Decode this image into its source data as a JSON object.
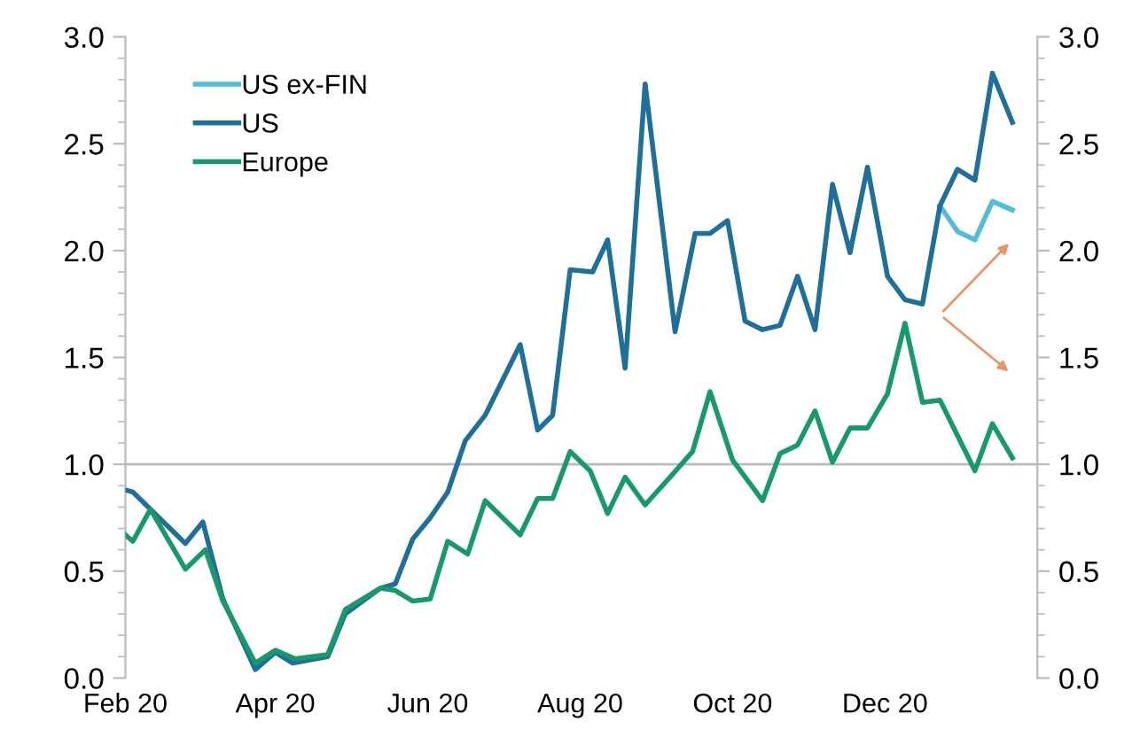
{
  "chart_data": {
    "type": "line",
    "series": [
      {
        "name": "US ex-FIN",
        "color": "#52bcd9",
        "x": [
          "2020-12-23",
          "2020-12-30",
          "2021-01-06",
          "2021-01-13",
          "2021-01-21"
        ],
        "values": [
          2.21,
          2.09,
          2.05,
          2.23,
          2.19
        ]
      },
      {
        "name": "US",
        "color": "#1e6f99",
        "x": [
          "2020-02-01",
          "2020-02-04",
          "2020-02-25",
          "2020-03-03",
          "2020-03-11",
          "2020-03-24",
          "2020-04-01",
          "2020-04-08",
          "2020-04-22",
          "2020-04-29",
          "2020-05-13",
          "2020-05-19",
          "2020-05-26",
          "2020-06-02",
          "2020-06-09",
          "2020-06-16",
          "2020-06-24",
          "2020-07-08",
          "2020-07-15",
          "2020-07-21",
          "2020-07-28",
          "2020-08-06",
          "2020-08-12",
          "2020-08-19",
          "2020-08-27",
          "2020-09-08",
          "2020-09-16",
          "2020-09-22",
          "2020-09-29",
          "2020-10-06",
          "2020-10-13",
          "2020-10-20",
          "2020-10-27",
          "2020-11-03",
          "2020-11-10",
          "2020-11-17",
          "2020-11-24",
          "2020-12-02",
          "2020-12-09",
          "2020-12-16",
          "2020-12-23",
          "2020-12-30",
          "2021-01-06",
          "2021-01-13",
          "2021-01-21"
        ],
        "values": [
          0.88,
          0.87,
          0.63,
          0.73,
          0.37,
          0.04,
          0.12,
          0.07,
          0.1,
          0.3,
          0.42,
          0.44,
          0.65,
          0.75,
          0.87,
          1.11,
          1.23,
          1.56,
          1.16,
          1.23,
          1.91,
          1.9,
          2.05,
          1.45,
          2.78,
          1.62,
          2.08,
          2.08,
          2.14,
          1.67,
          1.63,
          1.65,
          1.88,
          1.63,
          2.31,
          1.99,
          2.39,
          1.88,
          1.77,
          1.75,
          2.21,
          2.38,
          2.33,
          2.83,
          2.6
        ]
      },
      {
        "name": "Europe",
        "color": "#18996a",
        "x": [
          "2020-02-01",
          "2020-02-04",
          "2020-02-11",
          "2020-02-25",
          "2020-03-04",
          "2020-03-11",
          "2020-03-24",
          "2020-04-01",
          "2020-04-09",
          "2020-04-22",
          "2020-04-29",
          "2020-05-13",
          "2020-05-19",
          "2020-05-26",
          "2020-06-02",
          "2020-06-09",
          "2020-06-17",
          "2020-06-24",
          "2020-07-08",
          "2020-07-15",
          "2020-07-21",
          "2020-07-28",
          "2020-08-05",
          "2020-08-12",
          "2020-08-19",
          "2020-08-27",
          "2020-09-06",
          "2020-09-15",
          "2020-09-22",
          "2020-10-01",
          "2020-10-13",
          "2020-10-20",
          "2020-10-27",
          "2020-11-03",
          "2020-11-10",
          "2020-11-17",
          "2020-11-24",
          "2020-12-02",
          "2020-12-09",
          "2020-12-16",
          "2020-12-23",
          "2021-01-06",
          "2021-01-13",
          "2021-01-21"
        ],
        "values": [
          0.67,
          0.64,
          0.79,
          0.51,
          0.6,
          0.36,
          0.07,
          0.13,
          0.09,
          0.11,
          0.32,
          0.42,
          0.41,
          0.36,
          0.37,
          0.64,
          0.58,
          0.83,
          0.67,
          0.84,
          0.84,
          1.06,
          0.97,
          0.77,
          0.94,
          0.81,
          0.94,
          1.06,
          1.34,
          1.02,
          0.83,
          1.05,
          1.09,
          1.25,
          1.01,
          1.17,
          1.17,
          1.33,
          1.66,
          1.29,
          1.3,
          0.97,
          1.19,
          1.03
        ]
      }
    ],
    "xlim": [
      "2020-02-01",
      "2021-01-31"
    ],
    "xticks": [
      {
        "value": "2020-02-01",
        "label": "Feb 20"
      },
      {
        "value": "2020-04-01",
        "label": "Apr 20"
      },
      {
        "value": "2020-06-01",
        "label": "Jun 20"
      },
      {
        "value": "2020-08-01",
        "label": "Aug 20"
      },
      {
        "value": "2020-10-01",
        "label": "Oct 20"
      },
      {
        "value": "2020-12-01",
        "label": "Dec 20"
      }
    ],
    "ylim": [
      0,
      3
    ],
    "yticks": [
      {
        "value": 0,
        "label": "0.0"
      },
      {
        "value": 0.5,
        "label": "0.5"
      },
      {
        "value": 1,
        "label": "1.0"
      },
      {
        "value": 1.5,
        "label": "1.5"
      },
      {
        "value": 2,
        "label": "2.0"
      },
      {
        "value": 2.5,
        "label": "2.5"
      },
      {
        "value": 3,
        "label": "3.0"
      }
    ],
    "y2lim": [
      0,
      3
    ],
    "y2ticks": [
      {
        "value": 0,
        "label": "0.0"
      },
      {
        "value": 0.5,
        "label": "0.5"
      },
      {
        "value": 1,
        "label": "1.0"
      },
      {
        "value": 1.5,
        "label": "1.5"
      },
      {
        "value": 2,
        "label": "2.0"
      },
      {
        "value": 2.5,
        "label": "2.5"
      },
      {
        "value": 3,
        "label": "3.0"
      }
    ],
    "ref_lines": [
      {
        "axis": "y",
        "value": 1,
        "color": "#bbbbbb"
      }
    ],
    "legend": "top left",
    "grid": false,
    "line_style": "solid"
  }
}
